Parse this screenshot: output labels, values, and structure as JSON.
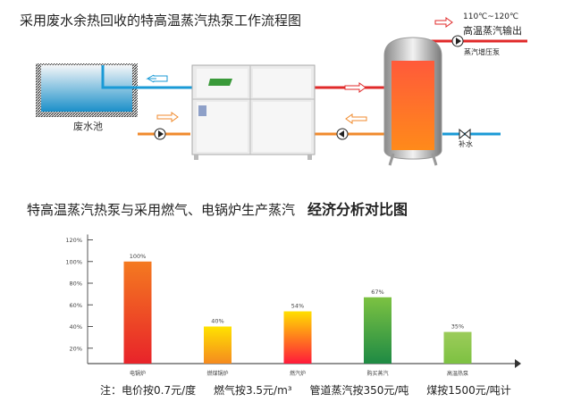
{
  "diagram": {
    "title": "采用废水余热回收的特高温蒸汽热泵工作流程图",
    "pool_label": "废水池",
    "temp_range": "110℃~120℃",
    "output_label": "高温蒸汽输出",
    "booster_pump_label": "蒸汽增压泵",
    "makeup_water_label": "补水",
    "colors": {
      "cold": "#1a9ad6",
      "warm": "#f08a2c",
      "hot": "#e02a2a"
    }
  },
  "chart_title": {
    "main": "特高温蒸汽热泵与采用燃气、电锅炉生产蒸汽",
    "bold": "经济分析对比图"
  },
  "chart_data": {
    "type": "bar",
    "categories": [
      "电锅炉",
      "燃煤锅炉",
      "燃汽炉",
      "购买蒸汽",
      "高温热泵"
    ],
    "values": [
      100,
      40,
      54,
      67,
      35
    ],
    "data_labels": [
      "100%",
      "40%",
      "54%",
      "67%",
      "35%"
    ],
    "yticks": [
      "20%",
      "40%",
      "60%",
      "80%",
      "100%",
      "120%"
    ],
    "ytick_values": [
      20,
      40,
      60,
      80,
      100,
      120
    ],
    "ylim": [
      0,
      120
    ],
    "grid": false,
    "bar_gradients": [
      [
        "#f47a20",
        "#e8232a"
      ],
      [
        "#ffe200",
        "#f58a1f"
      ],
      [
        "#ffe000",
        "#ff1a3a"
      ],
      [
        "#7cc242",
        "#1e8a44"
      ],
      [
        "#9ccc5a",
        "#7dc142"
      ]
    ]
  },
  "notes": [
    "注：电价按0.7元/度",
    "燃气按3.5元/m³",
    "管道蒸汽按350元/吨",
    "煤按1500元/吨计"
  ]
}
